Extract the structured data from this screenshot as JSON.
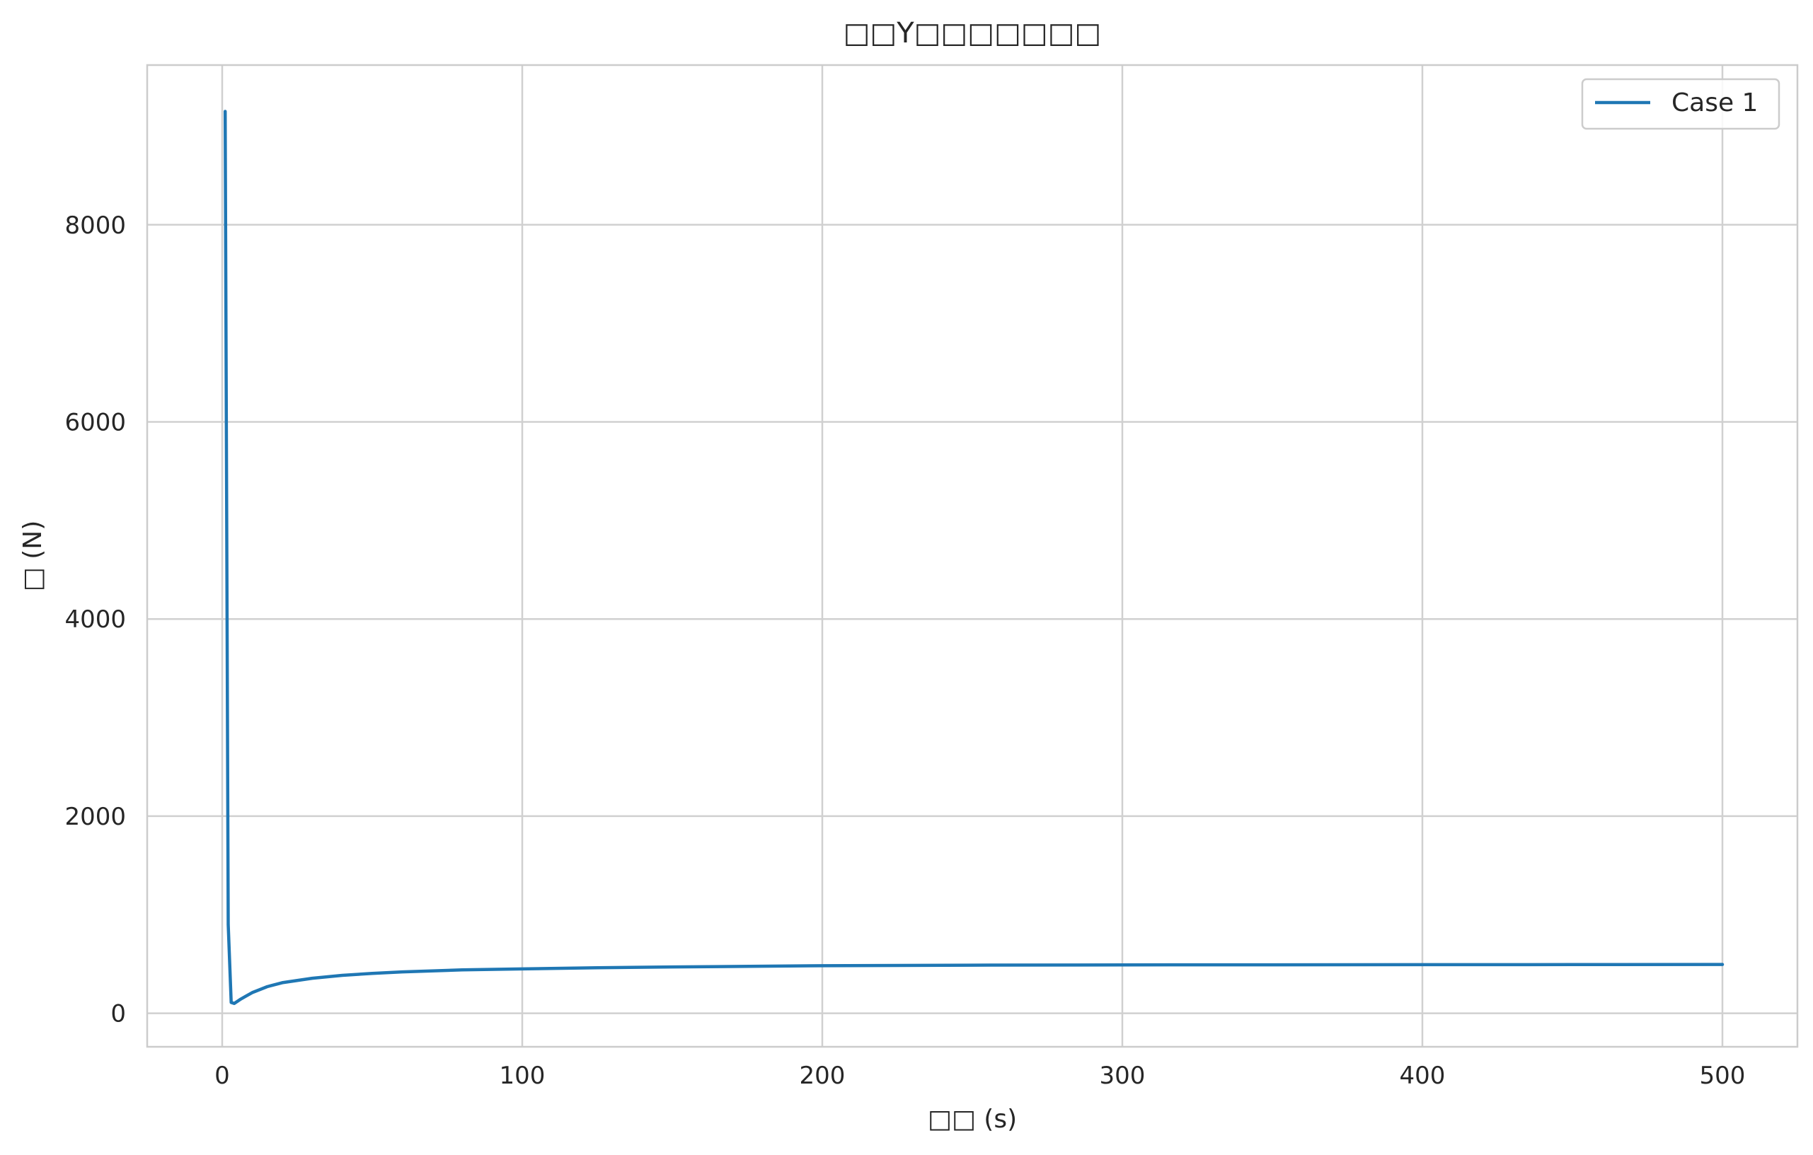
{
  "chart_data": {
    "type": "line",
    "title": "□□Y□□□□□□□",
    "xlabel": "□□ (s)",
    "ylabel": "□ (N)",
    "xlim": [
      -25,
      525
    ],
    "ylim": [
      -340,
      9620
    ],
    "x_ticks": [
      0,
      100,
      200,
      300,
      400,
      500
    ],
    "y_ticks": [
      0,
      2000,
      4000,
      6000,
      8000
    ],
    "x_tick_labels": [
      "0",
      "100",
      "200",
      "300",
      "400",
      "500"
    ],
    "y_tick_labels": [
      "0",
      "2000",
      "4000",
      "6000",
      "8000"
    ],
    "grid": true,
    "legend_position": "top-right",
    "colors": {
      "series": "#1f77b4",
      "grid": "#d0d0d0",
      "spine": "#cccccc",
      "text": "#262626"
    },
    "series": [
      {
        "name": "Case 1",
        "x": [
          1,
          2,
          3,
          4,
          6,
          8,
          10,
          15,
          20,
          30,
          40,
          50,
          60,
          80,
          100,
          125,
          150,
          200,
          250,
          300,
          350,
          400,
          450,
          500
        ],
        "y": [
          9150,
          900,
          110,
          100,
          140,
          175,
          210,
          270,
          310,
          355,
          385,
          405,
          420,
          440,
          450,
          462,
          470,
          482,
          488,
          491,
          492,
          493,
          494,
          495
        ]
      }
    ]
  }
}
